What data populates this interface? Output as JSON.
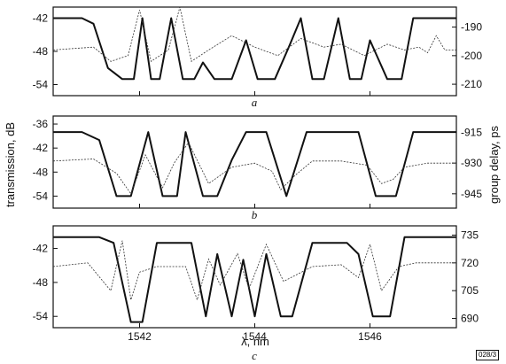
{
  "figure_code": "028/3",
  "chart_data": [
    {
      "type": "line",
      "panel": "a",
      "xlabel": "",
      "ylabel": "",
      "xlim": [
        1540.5,
        1547.5
      ],
      "ylim": [
        -56,
        -40
      ],
      "y2lim": [
        -214,
        -183
      ],
      "yticks": [
        -42,
        -48,
        -54
      ],
      "y2ticks": [
        -190,
        -200,
        -210
      ],
      "xticks": [
        1542,
        1544,
        1546
      ],
      "series": [
        {
          "axis": "left",
          "style": "solid",
          "x": [
            1540.5,
            1541.0,
            1541.2,
            1541.45,
            1541.7,
            1541.9,
            1542.05,
            1542.2,
            1542.35,
            1542.55,
            1542.75,
            1542.95,
            1543.1,
            1543.3,
            1543.6,
            1543.85,
            1544.05,
            1544.35,
            1544.6,
            1544.8,
            1545.0,
            1545.2,
            1545.45,
            1545.65,
            1545.85,
            1546.0,
            1546.3,
            1546.55,
            1546.75,
            1546.95,
            1547.5
          ],
          "y": [
            -42,
            -42,
            -43,
            -51,
            -53,
            -53,
            -42,
            -53,
            -53,
            -42,
            -53,
            -53,
            -50,
            -53,
            -53,
            -46,
            -53,
            -53,
            -47,
            -42,
            -53,
            -53,
            -42,
            -53,
            -53,
            -46,
            -53,
            -53,
            -42,
            -42,
            -42
          ]
        },
        {
          "axis": "right",
          "style": "dashed",
          "x": [
            1540.5,
            1541.2,
            1541.5,
            1541.8,
            1542.0,
            1542.2,
            1542.5,
            1542.7,
            1542.9,
            1543.2,
            1543.6,
            1544.0,
            1544.4,
            1544.8,
            1545.2,
            1545.5,
            1545.9,
            1546.3,
            1546.6,
            1546.85,
            1547.0,
            1547.15,
            1547.3,
            1547.5
          ],
          "y": [
            -198,
            -197,
            -202,
            -200,
            -184,
            -202,
            -198,
            -183,
            -202,
            -198,
            -193,
            -197,
            -200,
            -194,
            -197,
            -196,
            -200,
            -196,
            -198,
            -197,
            -199,
            -193,
            -198,
            -198
          ]
        }
      ]
    },
    {
      "type": "line",
      "panel": "b",
      "xlabel": "",
      "ylabel": "transmission, dB",
      "y2label": "group delay, ps",
      "xlim": [
        1540.5,
        1547.5
      ],
      "ylim": [
        -57,
        -34
      ],
      "y2lim": [
        -952,
        -907
      ],
      "yticks": [
        -36,
        -42,
        -48,
        -54
      ],
      "y2ticks": [
        -915,
        -930,
        -945
      ],
      "xticks": [
        1542,
        1544,
        1546
      ],
      "series": [
        {
          "axis": "left",
          "style": "solid",
          "x": [
            1540.5,
            1541.0,
            1541.3,
            1541.6,
            1541.85,
            1542.15,
            1542.4,
            1542.65,
            1542.8,
            1543.1,
            1543.35,
            1543.6,
            1543.85,
            1544.2,
            1544.55,
            1544.9,
            1545.1,
            1545.4,
            1545.8,
            1546.1,
            1546.45,
            1546.75,
            1547.0,
            1547.5
          ],
          "y": [
            -38,
            -38,
            -40,
            -54,
            -54,
            -38,
            -54,
            -54,
            -38,
            -54,
            -54,
            -45,
            -38,
            -38,
            -54,
            -38,
            -38,
            -38,
            -38,
            -54,
            -54,
            -38,
            -38,
            -38
          ]
        },
        {
          "axis": "right",
          "style": "dashed",
          "x": [
            1540.5,
            1541.2,
            1541.6,
            1541.85,
            1542.1,
            1542.4,
            1542.6,
            1542.85,
            1543.2,
            1543.6,
            1544.0,
            1544.3,
            1544.45,
            1544.7,
            1545.0,
            1545.5,
            1545.95,
            1546.2,
            1546.4,
            1546.6,
            1547.0,
            1547.5
          ],
          "y": [
            -929,
            -928,
            -935,
            -945,
            -926,
            -942,
            -930,
            -920,
            -940,
            -932,
            -930,
            -934,
            -943,
            -936,
            -929,
            -929,
            -931,
            -940,
            -938,
            -932,
            -930,
            -930
          ]
        }
      ]
    },
    {
      "type": "line",
      "panel": "c",
      "xlabel": "λ, nm",
      "ylabel": "",
      "xlim": [
        1540.5,
        1547.5
      ],
      "ylim": [
        -56,
        -38
      ],
      "y2lim": [
        685,
        740
      ],
      "yticks": [
        -42,
        -48,
        -54
      ],
      "y2ticks": [
        735,
        720,
        705,
        690
      ],
      "xticks": [
        1542,
        1544,
        1546
      ],
      "series": [
        {
          "axis": "left",
          "style": "solid",
          "x": [
            1540.5,
            1541.3,
            1541.55,
            1541.85,
            1542.05,
            1542.3,
            1542.6,
            1542.9,
            1543.15,
            1543.35,
            1543.6,
            1543.8,
            1544.0,
            1544.2,
            1544.45,
            1544.65,
            1545.0,
            1545.6,
            1545.8,
            1546.05,
            1546.35,
            1546.6,
            1546.8,
            1547.5
          ],
          "y": [
            -40,
            -40,
            -41,
            -55,
            -55,
            -41,
            -41,
            -41,
            -54,
            -43,
            -54,
            -44,
            -54,
            -43,
            -54,
            -54,
            -41,
            -41,
            -43,
            -54,
            -54,
            -40,
            -40,
            -40
          ]
        },
        {
          "axis": "right",
          "style": "dashed",
          "x": [
            1540.5,
            1541.1,
            1541.5,
            1541.7,
            1541.85,
            1542.0,
            1542.3,
            1542.8,
            1543.0,
            1543.2,
            1543.4,
            1543.7,
            1543.9,
            1544.2,
            1544.5,
            1545.0,
            1545.5,
            1545.8,
            1546.0,
            1546.2,
            1546.5,
            1546.8,
            1547.5
          ],
          "y": [
            718,
            720,
            705,
            732,
            700,
            715,
            718,
            718,
            700,
            722,
            708,
            725,
            706,
            730,
            710,
            718,
            719,
            712,
            730,
            705,
            718,
            720,
            720
          ]
        }
      ]
    }
  ]
}
